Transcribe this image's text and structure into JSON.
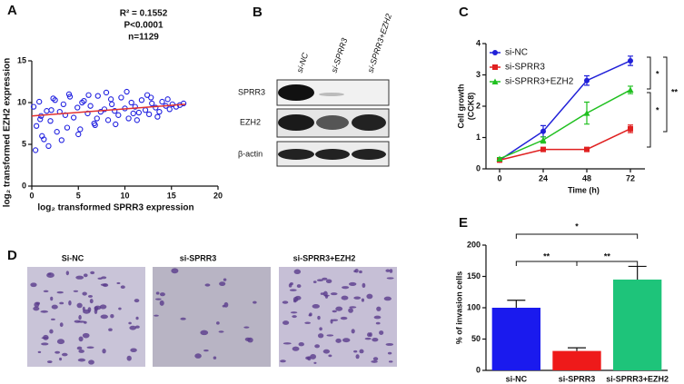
{
  "panel_labels": [
    "A",
    "B",
    "C",
    "D",
    "E"
  ],
  "blot": {
    "lanes": [
      "si-NC",
      "si-SPRR3",
      "si-SPRR3+EZH2"
    ],
    "rows": [
      "SPRR3",
      "EZH2",
      "β-actin"
    ]
  },
  "micrographs": {
    "labels": [
      "Si-NC",
      "si-SPRR3",
      "si-SPRR3+EZH2"
    ]
  },
  "chart_data": [
    {
      "type": "scatter",
      "annotations": [
        "R² = 0.1552",
        "P<0.0001",
        "n=1129"
      ],
      "x_label": "log₂ transformed SPRR3 expression",
      "y_label": "log₂ transformed EZH2  expression",
      "color": "#2020e0",
      "trend_color": "#e03030",
      "trend": {
        "x": [
          0,
          16.5
        ],
        "y": [
          8.4,
          9.8
        ]
      },
      "x": [
        0.2,
        0.5,
        0.8,
        1.0,
        1.3,
        1.6,
        2.0,
        2.3,
        2.7,
        3.0,
        3.4,
        3.8,
        4.1,
        4.5,
        4.9,
        5.2,
        5.6,
        6.0,
        6.3,
        6.7,
        7.1,
        7.4,
        7.8,
        8.2,
        8.5,
        8.9,
        9.3,
        9.6,
        10.0,
        10.4,
        10.7,
        11.1,
        11.5,
        11.8,
        12.2,
        12.6,
        12.9,
        13.3,
        13.7,
        14.0,
        14.4,
        14.8,
        15.1,
        15.5,
        15.9,
        16.3,
        0.4,
        1.1,
        1.8,
        2.5,
        3.2,
        4.0,
        5.0,
        6.1,
        7.0,
        8.0,
        9.0,
        10.2,
        11.3,
        12.4,
        13.5,
        14.6,
        0.9,
        2.1,
        3.6,
        5.4,
        6.8,
        8.6,
        10.9,
        12.8
      ],
      "y": [
        9.5,
        7.2,
        10.1,
        8.4,
        5.6,
        9.0,
        7.8,
        10.5,
        6.5,
        8.9,
        9.8,
        7.0,
        10.7,
        8.2,
        9.4,
        6.8,
        10.2,
        8.7,
        9.6,
        7.5,
        10.8,
        8.9,
        9.2,
        7.9,
        10.4,
        9.0,
        8.5,
        10.6,
        9.3,
        8.1,
        10.0,
        9.5,
        8.8,
        10.3,
        9.1,
        8.6,
        9.9,
        9.4,
        8.9,
        10.1,
        9.6,
        9.2,
        9.8,
        9.5,
        9.7,
        9.9,
        4.3,
        6.0,
        4.8,
        10.3,
        5.5,
        11.0,
        6.2,
        10.9,
        8.1,
        11.2,
        7.4,
        11.3,
        7.9,
        10.9,
        8.3,
        10.4,
        8.0,
        9.1,
        8.5,
        10.0,
        7.3,
        9.8,
        8.7,
        10.6
      ],
      "xlim": [
        0,
        20
      ],
      "xticks": [
        0,
        5,
        10,
        15,
        20
      ],
      "ylim": [
        0,
        15
      ],
      "yticks": [
        0,
        5,
        10,
        15
      ]
    },
    {
      "type": "line",
      "x_label": "Time (h)",
      "y_label": [
        "Cell growth",
        "(CCK8)"
      ],
      "x": [
        0,
        24,
        48,
        72
      ],
      "series": [
        {
          "name": "si-NC",
          "color": "#2020d8",
          "marker": "circle",
          "values": [
            0.28,
            1.2,
            2.82,
            3.45
          ],
          "errors": [
            0.05,
            0.18,
            0.15,
            0.15
          ]
        },
        {
          "name": "si-SPRR3",
          "color": "#e02020",
          "marker": "square",
          "values": [
            0.28,
            0.62,
            0.62,
            1.28
          ],
          "errors": [
            0.03,
            0.05,
            0.06,
            0.12
          ]
        },
        {
          "name": "si-SPRR3+EZH2",
          "color": "#20c020",
          "marker": "triangle",
          "values": [
            0.32,
            0.92,
            1.78,
            2.52
          ],
          "errors": [
            0.04,
            0.1,
            0.35,
            0.12
          ]
        }
      ],
      "annotations": [
        "*",
        "*",
        "**"
      ],
      "xlim": [
        -7.5,
        80
      ],
      "xticks": [
        0,
        24,
        48,
        72
      ],
      "ylim": [
        0,
        4
      ],
      "yticks": [
        0,
        1,
        2,
        3,
        4
      ]
    },
    {
      "type": "bar",
      "y_label": "% of invasion cells",
      "categories": [
        "si-NC",
        "si-SPRR3",
        "si-SPRR3+EZH2"
      ],
      "values": [
        100,
        31,
        145
      ],
      "errors": [
        12,
        5,
        21
      ],
      "colors": [
        "#1a1aee",
        "#ee1a1a",
        "#1ec47a"
      ],
      "annotations": [
        "**",
        "**",
        "*"
      ],
      "ylim": [
        0,
        200
      ],
      "yticks": [
        0,
        50,
        100,
        150,
        200
      ]
    }
  ]
}
